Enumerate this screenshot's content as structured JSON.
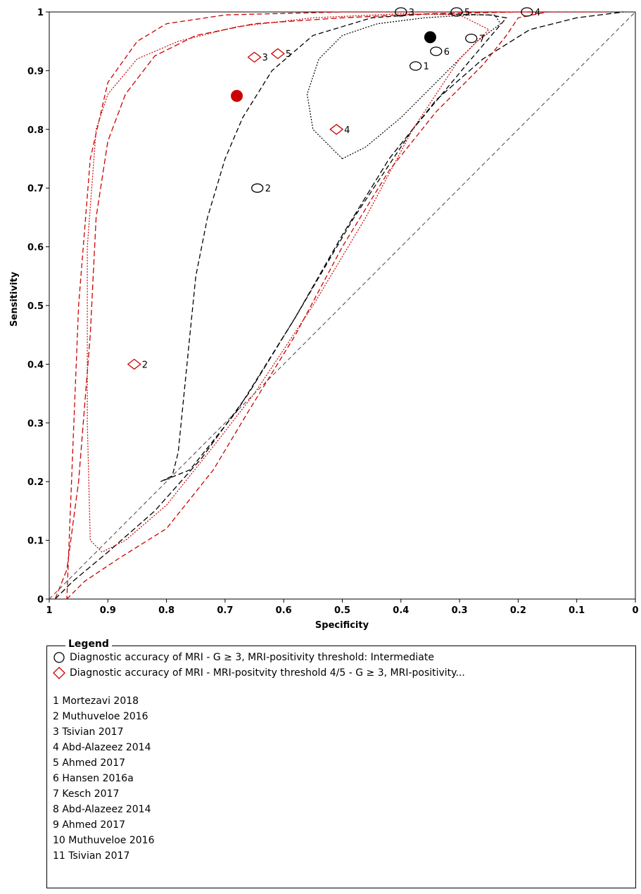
{
  "chart_data": {
    "type": "scatter",
    "xlabel": "Specificity",
    "ylabel": "Sensitivity",
    "x_reversed": true,
    "xlim": [
      1,
      0
    ],
    "ylim": [
      0,
      1
    ],
    "x_ticks": [
      "1",
      "0.9",
      "0.8",
      "0.7",
      "0.6",
      "0.5",
      "0.4",
      "0.3",
      "0.2",
      "0.1",
      "0"
    ],
    "y_ticks": [
      "0",
      "0.1",
      "0.2",
      "0.3",
      "0.4",
      "0.5",
      "0.6",
      "0.7",
      "0.8",
      "0.9",
      "1"
    ],
    "series": [
      {
        "color": "#000000",
        "marker": "circle",
        "summary_point": {
          "specificity": 0.35,
          "sensitivity": 0.957
        },
        "points": [
          {
            "label": "1",
            "specificity": 0.375,
            "sensitivity": 0.908
          },
          {
            "label": "2",
            "specificity": 0.645,
            "sensitivity": 0.7
          },
          {
            "label": "3",
            "specificity": 0.4,
            "sensitivity": 1.0
          },
          {
            "label": "4",
            "specificity": 0.185,
            "sensitivity": 1.0
          },
          {
            "label": "5",
            "specificity": 0.305,
            "sensitivity": 1.0
          },
          {
            "label": "6",
            "specificity": 0.34,
            "sensitivity": 0.933
          },
          {
            "label": "7",
            "specificity": 0.28,
            "sensitivity": 0.955
          }
        ],
        "sroc_curve": [
          [
            0.99,
            0.0
          ],
          [
            0.96,
            0.03
          ],
          [
            0.9,
            0.08
          ],
          [
            0.82,
            0.15
          ],
          [
            0.74,
            0.24
          ],
          [
            0.66,
            0.35
          ],
          [
            0.58,
            0.48
          ],
          [
            0.5,
            0.62
          ],
          [
            0.42,
            0.75
          ],
          [
            0.34,
            0.85
          ],
          [
            0.26,
            0.92
          ],
          [
            0.18,
            0.97
          ],
          [
            0.1,
            0.99
          ],
          [
            0.02,
            1.0
          ]
        ],
        "confidence_region": [
          [
            0.5,
            0.75
          ],
          [
            0.55,
            0.8
          ],
          [
            0.56,
            0.86
          ],
          [
            0.54,
            0.92
          ],
          [
            0.5,
            0.96
          ],
          [
            0.44,
            0.98
          ],
          [
            0.36,
            0.99
          ],
          [
            0.28,
            0.995
          ],
          [
            0.24,
            0.995
          ],
          [
            0.23,
            0.98
          ],
          [
            0.27,
            0.95
          ],
          [
            0.34,
            0.88
          ],
          [
            0.4,
            0.82
          ],
          [
            0.46,
            0.77
          ],
          [
            0.5,
            0.75
          ]
        ],
        "prediction_region": [
          [
            0.81,
            0.2
          ],
          [
            0.79,
            0.21
          ],
          [
            0.78,
            0.25
          ],
          [
            0.77,
            0.35
          ],
          [
            0.76,
            0.45
          ],
          [
            0.75,
            0.55
          ],
          [
            0.73,
            0.65
          ],
          [
            0.7,
            0.75
          ],
          [
            0.67,
            0.82
          ],
          [
            0.62,
            0.9
          ],
          [
            0.55,
            0.96
          ],
          [
            0.45,
            0.99
          ],
          [
            0.35,
            0.997
          ],
          [
            0.25,
            0.995
          ],
          [
            0.22,
            0.99
          ],
          [
            0.28,
            0.92
          ],
          [
            0.38,
            0.8
          ],
          [
            0.48,
            0.65
          ],
          [
            0.58,
            0.48
          ],
          [
            0.68,
            0.32
          ],
          [
            0.76,
            0.22
          ],
          [
            0.81,
            0.2
          ]
        ]
      },
      {
        "color": "#cc0000",
        "marker": "diamond",
        "summary_point": {
          "specificity": 0.68,
          "sensitivity": 0.857
        },
        "points": [
          {
            "label": "2",
            "specificity": 0.855,
            "sensitivity": 0.4
          },
          {
            "label": "3",
            "specificity": 0.65,
            "sensitivity": 0.923
          },
          {
            "label": "4",
            "specificity": 0.51,
            "sensitivity": 0.8
          },
          {
            "label": "5",
            "specificity": 0.61,
            "sensitivity": 0.929
          }
        ],
        "sroc_curve": [
          [
            0.99,
            0.0
          ],
          [
            0.97,
            0.05
          ],
          [
            0.95,
            0.2
          ],
          [
            0.93,
            0.45
          ],
          [
            0.92,
            0.65
          ],
          [
            0.9,
            0.78
          ],
          [
            0.87,
            0.86
          ],
          [
            0.82,
            0.925
          ],
          [
            0.75,
            0.96
          ],
          [
            0.65,
            0.98
          ],
          [
            0.5,
            0.99
          ],
          [
            0.35,
            0.997
          ],
          [
            0.2,
            1.0
          ],
          [
            0.05,
            1.0
          ]
        ],
        "confidence_region": [
          [
            0.91,
            0.08
          ],
          [
            0.93,
            0.1
          ],
          [
            0.935,
            0.3
          ],
          [
            0.935,
            0.6
          ],
          [
            0.92,
            0.8
          ],
          [
            0.9,
            0.86
          ],
          [
            0.85,
            0.92
          ],
          [
            0.78,
            0.95
          ],
          [
            0.68,
            0.975
          ],
          [
            0.55,
            0.99
          ],
          [
            0.4,
            0.997
          ],
          [
            0.3,
            0.995
          ],
          [
            0.25,
            0.97
          ],
          [
            0.3,
            0.92
          ],
          [
            0.38,
            0.8
          ],
          [
            0.46,
            0.65
          ],
          [
            0.55,
            0.5
          ],
          [
            0.65,
            0.35
          ],
          [
            0.72,
            0.26
          ],
          [
            0.8,
            0.16
          ],
          [
            0.87,
            0.1
          ],
          [
            0.91,
            0.08
          ]
        ],
        "prediction_region": [
          [
            0.97,
            0.0
          ],
          [
            0.94,
            0.03
          ],
          [
            0.88,
            0.07
          ],
          [
            0.8,
            0.12
          ],
          [
            0.72,
            0.22
          ],
          [
            0.66,
            0.32
          ],
          [
            0.58,
            0.45
          ],
          [
            0.5,
            0.6
          ],
          [
            0.42,
            0.73
          ],
          [
            0.34,
            0.83
          ],
          [
            0.26,
            0.91
          ],
          [
            0.22,
            0.96
          ],
          [
            0.2,
            0.99
          ],
          [
            0.15,
            1.0
          ],
          [
            0.5,
            1.0
          ],
          [
            0.7,
            0.995
          ],
          [
            0.8,
            0.98
          ],
          [
            0.85,
            0.95
          ],
          [
            0.9,
            0.88
          ],
          [
            0.93,
            0.75
          ],
          [
            0.95,
            0.5
          ],
          [
            0.96,
            0.25
          ],
          [
            0.97,
            0.0
          ]
        ]
      }
    ]
  },
  "legend": {
    "title": "Legend",
    "entries": [
      {
        "symbol": "circle",
        "color": "#000000",
        "label": "Diagnostic accuracy of MRI - G ≥ 3, MRI-positivity threshold: Intermediate"
      },
      {
        "symbol": "diamond",
        "color": "#cc0000",
        "label": "Diagnostic accuracy of MRI - MRI-positvity threshold 4/5 - G ≥ 3, MRI-positivity..."
      }
    ],
    "studies": [
      "1 Mortezavi 2018",
      "2 Muthuveloe 2016",
      "3 Tsivian 2017",
      "4 Abd-Alazeez 2014",
      "5 Ahmed 2017",
      "6 Hansen 2016a",
      "7 Kesch 2017",
      "8 Abd-Alazeez 2014",
      "9 Ahmed 2017",
      "10 Muthuveloe 2016",
      "11 Tsivian 2017"
    ]
  }
}
